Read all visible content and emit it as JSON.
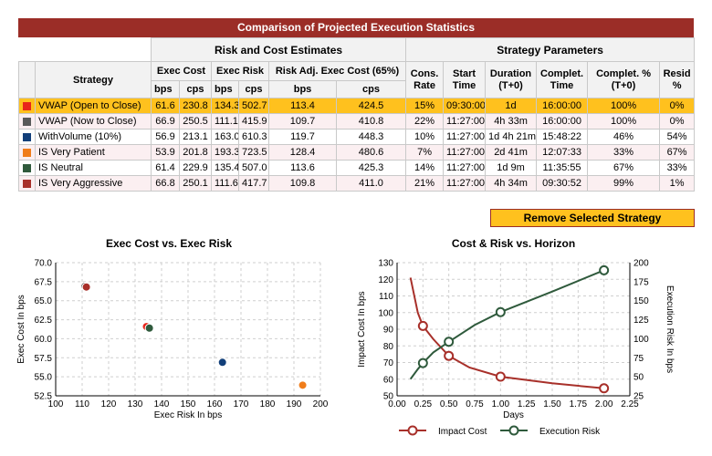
{
  "table": {
    "title": "Comparison of Projected Execution Statistics",
    "group_risk": "Risk and Cost Estimates",
    "group_strategy": "Strategy Parameters",
    "col_strategy": "Strategy",
    "col_exec_cost": "Exec Cost",
    "col_exec_risk": "Exec Risk",
    "col_risk_adj": "Risk Adj. Exec Cost (65%)",
    "col_cons_rate": "Cons. Rate",
    "col_start_time": "Start Time",
    "col_duration": "Duration (T+0)",
    "col_complet_time": "Complet. Time",
    "col_complet_pct": "Complet. % (T+0)",
    "col_resid": "Resid %",
    "unit_bps": "bps",
    "unit_cps": "cps",
    "rows": [
      {
        "color": "#e8261b",
        "name": "VWAP (Open to Close)",
        "cost_bps": "61.6",
        "cost_cps": "230.8",
        "risk_bps": "134.3",
        "risk_cps": "502.7",
        "adj_bps": "113.4",
        "adj_cps": "424.5",
        "cons_rate": "15%",
        "start": "09:30:00",
        "duration": "1d",
        "complet_time": "16:00:00",
        "complet_pct": "100%",
        "resid": "0%"
      },
      {
        "color": "#5a5a5a",
        "name": "VWAP (Now to Close)",
        "cost_bps": "66.9",
        "cost_cps": "250.5",
        "risk_bps": "111.1",
        "risk_cps": "415.9",
        "adj_bps": "109.7",
        "adj_cps": "410.8",
        "cons_rate": "22%",
        "start": "11:27:00",
        "duration": "4h 33m",
        "complet_time": "16:00:00",
        "complet_pct": "100%",
        "resid": "0%"
      },
      {
        "color": "#123f7a",
        "name": "WithVolume (10%)",
        "cost_bps": "56.9",
        "cost_cps": "213.1",
        "risk_bps": "163.0",
        "risk_cps": "610.3",
        "adj_bps": "119.7",
        "adj_cps": "448.3",
        "cons_rate": "10%",
        "start": "11:27:00",
        "duration": "1d 4h 21m",
        "complet_time": "15:48:22",
        "complet_pct": "46%",
        "resid": "54%"
      },
      {
        "color": "#f07d1b",
        "name": "IS Very Patient",
        "cost_bps": "53.9",
        "cost_cps": "201.8",
        "risk_bps": "193.3",
        "risk_cps": "723.5",
        "adj_bps": "128.4",
        "adj_cps": "480.6",
        "cons_rate": "7%",
        "start": "11:27:00",
        "duration": "2d 41m",
        "complet_time": "12:07:33",
        "complet_pct": "33%",
        "resid": "67%"
      },
      {
        "color": "#2f5a3c",
        "name": "IS Neutral",
        "cost_bps": "61.4",
        "cost_cps": "229.9",
        "risk_bps": "135.4",
        "risk_cps": "507.0",
        "adj_bps": "113.6",
        "adj_cps": "425.3",
        "cons_rate": "14%",
        "start": "11:27:00",
        "duration": "1d 9m",
        "complet_time": "11:35:55",
        "complet_pct": "67%",
        "resid": "33%"
      },
      {
        "color": "#a8302a",
        "name": "IS Very Aggressive",
        "cost_bps": "66.8",
        "cost_cps": "250.1",
        "risk_bps": "111.6",
        "risk_cps": "417.7",
        "adj_bps": "109.8",
        "adj_cps": "411.0",
        "cons_rate": "21%",
        "start": "11:27:00",
        "duration": "4h 34m",
        "complet_time": "09:30:52",
        "complet_pct": "99%",
        "resid": "1%"
      }
    ],
    "selected_row": 0
  },
  "remove_button": {
    "label": "Remove Selected Strategy"
  },
  "chart_data": [
    {
      "type": "scatter",
      "title": "Exec Cost vs. Exec Risk",
      "xlabel": "Exec Risk In bps",
      "ylabel": "Exec Cost In bps",
      "xlim": [
        100,
        200
      ],
      "ylim": [
        52.5,
        70.0
      ],
      "xticks": [
        "100",
        "110",
        "120",
        "130",
        "140",
        "150",
        "160",
        "170",
        "180",
        "190",
        "200"
      ],
      "yticks": [
        "52.5",
        "55.0",
        "57.5",
        "60.0",
        "62.5",
        "65.0",
        "67.5",
        "70.0"
      ],
      "grid": true,
      "points": [
        {
          "x": 134.3,
          "y": 61.6,
          "color": "#e8261b"
        },
        {
          "x": 111.1,
          "y": 66.9,
          "color": "#5a5a5a"
        },
        {
          "x": 163.0,
          "y": 56.9,
          "color": "#123f7a"
        },
        {
          "x": 193.3,
          "y": 53.9,
          "color": "#f07d1b"
        },
        {
          "x": 135.4,
          "y": 61.4,
          "color": "#2f5a3c"
        },
        {
          "x": 111.6,
          "y": 66.8,
          "color": "#a8302a"
        }
      ]
    },
    {
      "type": "line",
      "title": "Cost & Risk vs. Horizon",
      "xlabel": "Days",
      "ylabel": "Impact Cost In bps",
      "y2label": "Execution Risk In bps",
      "xlim": [
        0,
        2.25
      ],
      "ylim": [
        50,
        130
      ],
      "y2lim": [
        25,
        200
      ],
      "xticks": [
        "0.00",
        "0.25",
        "0.50",
        "0.75",
        "1.00",
        "1.25",
        "1.50",
        "1.75",
        "2.00",
        "2.25"
      ],
      "yticks": [
        "50",
        "60",
        "70",
        "80",
        "90",
        "100",
        "110",
        "120",
        "130"
      ],
      "y2ticks": [
        "25",
        "50",
        "75",
        "100",
        "125",
        "150",
        "175",
        "200"
      ],
      "grid": true,
      "legend": "bottom",
      "series": [
        {
          "name": "Impact Cost",
          "color": "#a8302a",
          "axis": "left",
          "curve": [
            [
              0.13,
              121
            ],
            [
              0.2,
              100
            ],
            [
              0.25,
              92
            ],
            [
              0.35,
              84
            ],
            [
              0.5,
              74
            ],
            [
              0.7,
              67
            ],
            [
              1.0,
              61.5
            ],
            [
              1.5,
              57.5
            ],
            [
              2.0,
              54.5
            ]
          ],
          "markers": [
            [
              0.25,
              92
            ],
            [
              0.5,
              74
            ],
            [
              1.0,
              61.5
            ],
            [
              2.0,
              54.5
            ]
          ]
        },
        {
          "name": "Execution Risk",
          "color": "#2f5a3c",
          "axis": "right",
          "curve": [
            [
              0.13,
              47
            ],
            [
              0.2,
              60
            ],
            [
              0.25,
              68
            ],
            [
              0.35,
              82
            ],
            [
              0.5,
              96
            ],
            [
              0.75,
              118
            ],
            [
              1.0,
              135
            ],
            [
              1.5,
              162
            ],
            [
              2.0,
              190
            ]
          ],
          "markers": [
            [
              0.25,
              68
            ],
            [
              0.5,
              96
            ],
            [
              1.0,
              135
            ],
            [
              2.0,
              190
            ]
          ]
        }
      ]
    }
  ]
}
